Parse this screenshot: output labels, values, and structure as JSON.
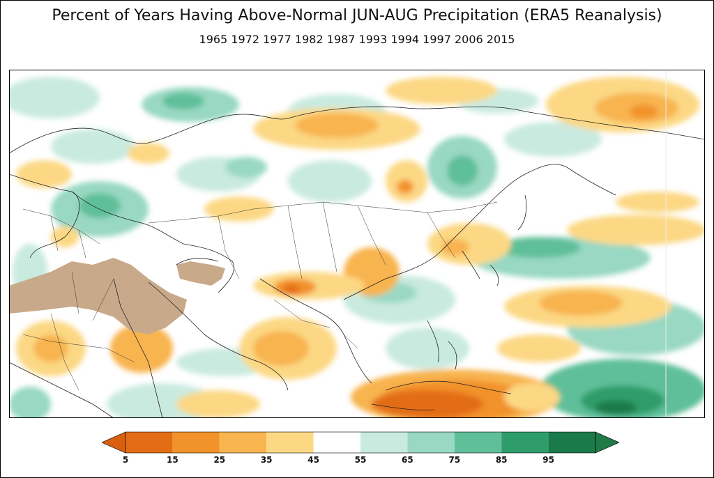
{
  "title": "Percent of Years Having Above-Normal JUN-AUG Precipitation (ERA5 Reanalysis)",
  "subtitle": "1965 1972 1977 1982 1987 1993 1994 1997 2006 2015",
  "colorbar": {
    "ticks": [
      "5",
      "15",
      "25",
      "35",
      "45",
      "55",
      "65",
      "75",
      "85",
      "95"
    ],
    "colors": [
      "#e36d14",
      "#f2922b",
      "#f8b44f",
      "#fcd884",
      "#ffffff",
      "#c9eadf",
      "#99d8c3",
      "#5fbf9a",
      "#2f9d6b",
      "#1a7a4a"
    ],
    "under_color": "#d95f0e",
    "over_color": "#1f7a45",
    "dry_mask_color": "#c8a98a"
  }
}
